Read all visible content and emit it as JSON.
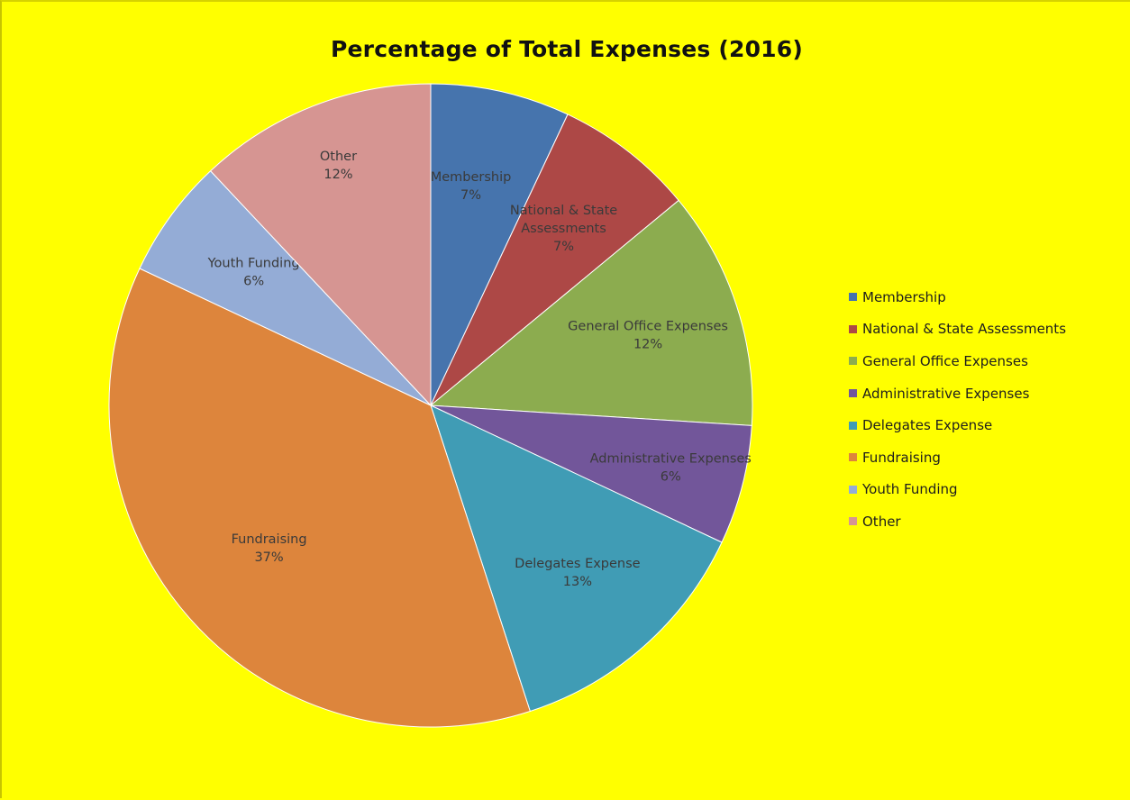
{
  "chart_data": {
    "type": "pie",
    "title": "Percentage of Total Expenses (2016)",
    "legend_position": "right",
    "slices": [
      {
        "name": "Membership",
        "value": 7,
        "label": "7%",
        "color": "#4674ad"
      },
      {
        "name": "National & State Assessments",
        "value": 7,
        "label": "7%",
        "color": "#ad4846"
      },
      {
        "name": "General Office Expenses",
        "value": 12,
        "label": "12%",
        "color": "#8cac4f"
      },
      {
        "name": "Administrative Expenses",
        "value": 6,
        "label": "6%",
        "color": "#72569a"
      },
      {
        "name": "Delegates Expense",
        "value": 13,
        "label": "13%",
        "color": "#409cb5"
      },
      {
        "name": "Fundraising",
        "value": 37,
        "label": "37%",
        "color": "#dd853c"
      },
      {
        "name": "Youth Funding",
        "value": 6,
        "label": "6%",
        "color": "#94acd6"
      },
      {
        "name": "Other",
        "value": 12,
        "label": "12%",
        "color": "#d69592"
      }
    ]
  },
  "colors": {
    "background": "#ffff00",
    "slice_border": "#ffffff",
    "label_text": "#3a3a3a"
  }
}
